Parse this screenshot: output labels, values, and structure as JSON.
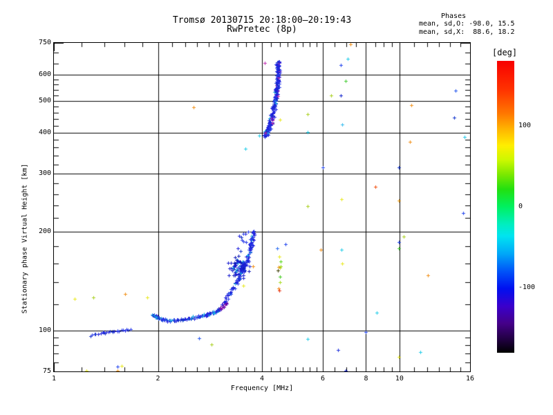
{
  "title": {
    "line1": "Tromsø 20130715 20:18:00–20:19:43",
    "line2": "RwPretec (8p)"
  },
  "stats": {
    "header": "Phases",
    "line_o": "mean, sd,O: -98.0, 15.5",
    "line_x": "mean, sd,X:  88.6, 18.2"
  },
  "chart_data": {
    "type": "scatter",
    "title": "Tromsø 20130715 20:18:00–20:19:43 / RwPretec (8p)",
    "xlabel": "Frequency [MHz]",
    "ylabel": "Stationary phase Virtual Height [km]",
    "x_scale": "log",
    "y_scale": "log",
    "x_range": [
      1,
      16
    ],
    "y_range": [
      75,
      750
    ],
    "x_ticks": [
      1,
      2,
      4,
      6,
      8,
      10,
      16
    ],
    "x_minor_ticks": [
      1.2,
      1.4,
      1.6,
      1.8,
      2.2,
      2.4,
      2.6,
      2.8,
      3,
      3.2,
      3.4,
      3.6,
      3.8,
      4.25,
      4.5,
      4.75,
      5,
      5.25,
      5.5,
      5.75,
      6.5,
      7,
      7.5,
      8.5,
      9,
      9.5,
      11,
      12,
      13,
      14,
      15
    ],
    "y_ticks": [
      75,
      100,
      200,
      300,
      400,
      500,
      600,
      750
    ],
    "y_minor_ticks": [
      80,
      85,
      90,
      95,
      120,
      140,
      160,
      180,
      220,
      240,
      260,
      280,
      320,
      340,
      360,
      380,
      420,
      440,
      460,
      480,
      520,
      540,
      560,
      580,
      650,
      700
    ],
    "x_gridlines": [
      2,
      4,
      6,
      8,
      10
    ],
    "y_gridlines": [
      100,
      200,
      300,
      400,
      500,
      600
    ],
    "grid": true,
    "colorbar": {
      "label": "[deg]",
      "range": [
        -180,
        180
      ],
      "ticks": [
        {
          "value": 100,
          "label": "100"
        },
        {
          "value": 0,
          "label": "0"
        },
        {
          "value": -100,
          "label": "-100"
        }
      ],
      "stops": [
        [
          0.0,
          "#f80000"
        ],
        [
          0.1,
          "#ff3300"
        ],
        [
          0.18,
          "#ff7700"
        ],
        [
          0.24,
          "#ffbb00"
        ],
        [
          0.29,
          "#ffee00"
        ],
        [
          0.34,
          "#ccf800"
        ],
        [
          0.39,
          "#7ae800"
        ],
        [
          0.44,
          "#22e010"
        ],
        [
          0.5,
          "#00f060"
        ],
        [
          0.56,
          "#00eec0"
        ],
        [
          0.6,
          "#00e4f0"
        ],
        [
          0.66,
          "#00a8f8"
        ],
        [
          0.72,
          "#0055f8"
        ],
        [
          0.78,
          "#0010f0"
        ],
        [
          0.84,
          "#3a00cc"
        ],
        [
          0.9,
          "#440088"
        ],
        [
          0.955,
          "#200040"
        ],
        [
          1.0,
          "#000000"
        ]
      ]
    },
    "series": [
      {
        "name": "E-trace-low",
        "kind": "path",
        "seed": 11,
        "count": 26,
        "jitter": [
          2,
          1.8
        ],
        "path": [
          [
            1.27,
            96.5
          ],
          [
            1.4,
            98.5
          ],
          [
            1.53,
            100
          ],
          [
            1.67,
            100.5
          ]
        ],
        "palette": [
          "#1f22dd",
          "#2b3ce8",
          "#1430c8",
          "#1f22dd",
          "#2b3ce8"
        ]
      },
      {
        "name": "E-trace-main",
        "kind": "path",
        "seed": 22,
        "count": 118,
        "jitter": [
          2.5,
          2.2
        ],
        "path": [
          [
            1.93,
            111
          ],
          [
            2.03,
            108.5
          ],
          [
            2.18,
            107
          ],
          [
            2.45,
            108.5
          ],
          [
            2.7,
            111
          ],
          [
            2.9,
            113.5
          ],
          [
            3.02,
            116
          ]
        ],
        "palette": [
          "#1f22dd",
          "#1f22dd",
          "#2b3ce8",
          "#1430c8",
          "#2b6ce8",
          "#18a8e0",
          "#1f22dd",
          "#2b3ce8",
          "#1f22dd",
          "#1f22dd",
          "#18a8e0",
          "#1430c8"
        ]
      },
      {
        "name": "E-trace-end-violet",
        "kind": "path",
        "seed": 33,
        "count": 16,
        "jitter": [
          2,
          2.5
        ],
        "path": [
          [
            3.0,
            115.5
          ],
          [
            3.09,
            119
          ],
          [
            3.17,
            122
          ]
        ],
        "palette": [
          "#5a10b8",
          "#7a10b8",
          "#4520c8",
          "#9510a8",
          "#3020cc",
          "#6a08a8"
        ]
      },
      {
        "name": "E-F-rising",
        "kind": "path",
        "seed": 44,
        "count": 95,
        "jitter": [
          3,
          5.5
        ],
        "path": [
          [
            3.08,
            121
          ],
          [
            3.25,
            131
          ],
          [
            3.4,
            142
          ],
          [
            3.52,
            153
          ],
          [
            3.62,
            166
          ],
          [
            3.7,
            178
          ],
          [
            3.76,
            190
          ],
          [
            3.8,
            200
          ]
        ],
        "palette": [
          "#1f22dd",
          "#1f22dd",
          "#2b3ce8",
          "#1430c8",
          "#1f22dd",
          "#2b3ce8",
          "#1430c8",
          "#1f22dd",
          "#18a8e0",
          "#1f22dd",
          "#2b3ce8",
          "#1f22dd"
        ]
      },
      {
        "name": "mid-cluster",
        "kind": "blob",
        "seed": 55,
        "count": 75,
        "center": [
          3.45,
          155
        ],
        "sigma": [
          11,
          13
        ],
        "palette": [
          "#1a1ed0",
          "#1a1ed0",
          "#2530e0",
          "#101ab8",
          "#1a1ed0",
          "#2530e0",
          "#101ab8",
          "#1a1ed0",
          "#18a0d8",
          "#1a1ed0"
        ]
      },
      {
        "name": "upper-cluster",
        "kind": "blob",
        "seed": 66,
        "count": 14,
        "center": [
          3.62,
          186
        ],
        "sigma": [
          10,
          11
        ],
        "palette": [
          "#1f22dd",
          "#2b3ce8",
          "#1430c8",
          "#1f22dd"
        ]
      },
      {
        "name": "F-trace-vertical",
        "kind": "path",
        "seed": 77,
        "count": 235,
        "jitter": [
          3.2,
          6
        ],
        "path": [
          [
            4.07,
            388
          ],
          [
            4.18,
            412
          ],
          [
            4.3,
            455
          ],
          [
            4.38,
            505
          ],
          [
            4.43,
            555
          ],
          [
            4.455,
            610
          ],
          [
            4.44,
            655
          ]
        ],
        "palette": [
          "#1f22dd",
          "#2b3ce8",
          "#1430c8",
          "#1f22dd",
          "#2b3ce8",
          "#1f22dd",
          "#1430c8",
          "#2b3ce8",
          "#1f22dd",
          "#1f22dd",
          "#2b3ce8",
          "#1f22dd",
          "#1430c8",
          "#1f22dd",
          "#18a8e0",
          "#1f22dd",
          "#2b3ce8",
          "#1f22dd",
          "#1f22dd",
          "#c02fb0"
        ]
      },
      {
        "name": "secondary-column",
        "kind": "points",
        "points": [
          [
            4.43,
            178,
            "#2a6cf0"
          ],
          [
            4.49,
            168,
            "#e8e820"
          ],
          [
            4.53,
            162,
            "#55d818"
          ],
          [
            4.46,
            156,
            "#f09018"
          ],
          [
            4.5,
            155,
            "#c8c818"
          ],
          [
            4.53,
            157,
            "#9ad818"
          ],
          [
            4.51,
            146,
            "#44cc22"
          ],
          [
            4.5,
            140,
            "#aadd22"
          ],
          [
            4.47,
            134,
            "#f08818"
          ],
          [
            4.48,
            132,
            "#e83818"
          ],
          [
            4.44,
            152,
            "#404008"
          ]
        ]
      }
    ],
    "outliers": [
      [
        7.07,
        671,
        "#22cce8"
      ],
      [
        6.76,
        643,
        "#2244ee"
      ],
      [
        6.98,
        574,
        "#44cc33"
      ],
      [
        6.34,
        518,
        "#aad020"
      ],
      [
        6.76,
        518,
        "#1122cc"
      ],
      [
        14.5,
        538,
        "#2255ee"
      ],
      [
        10.8,
        486,
        "#f09018"
      ],
      [
        5.41,
        456,
        "#aad020"
      ],
      [
        14.4,
        445,
        "#1133cc"
      ],
      [
        5.41,
        401,
        "#22cce8"
      ],
      [
        6.82,
        423,
        "#33bbee"
      ],
      [
        15.4,
        388,
        "#22c8e8"
      ],
      [
        10.7,
        375,
        "#f09018"
      ],
      [
        8.5,
        273,
        "#f05010"
      ],
      [
        6.8,
        251,
        "#e8e820"
      ],
      [
        9.95,
        248,
        "#f0a018"
      ],
      [
        9.95,
        313,
        "#1133cc"
      ],
      [
        5.99,
        313,
        "#2244ee"
      ],
      [
        5.41,
        239,
        "#aad020"
      ],
      [
        15.3,
        228,
        "#2244ee"
      ],
      [
        5.92,
        176,
        "#f09018"
      ],
      [
        6.8,
        176,
        "#22cce8"
      ],
      [
        10.3,
        193,
        "#aad020"
      ],
      [
        9.95,
        186,
        "#2244ee"
      ],
      [
        9.95,
        178,
        "#44cc33"
      ],
      [
        6.83,
        160,
        "#e8e820"
      ],
      [
        12.1,
        147,
        "#f09018"
      ],
      [
        8.6,
        113,
        "#22cce8"
      ],
      [
        8.0,
        99,
        "#2244ee"
      ],
      [
        5.41,
        94,
        "#22cce8"
      ],
      [
        6.65,
        87,
        "#2233dd"
      ],
      [
        11.5,
        86,
        "#22cce8"
      ],
      [
        9.95,
        83,
        "#e8e820"
      ],
      [
        6.98,
        75.5,
        "#1122cc"
      ],
      [
        1.3,
        126,
        "#aad020"
      ],
      [
        1.61,
        129,
        "#f09018"
      ],
      [
        1.86,
        126,
        "#e8e820"
      ],
      [
        1.15,
        125,
        "#e8e820"
      ],
      [
        1.53,
        77.6,
        "#2244ee"
      ],
      [
        1.57,
        77.8,
        "#e8e820"
      ],
      [
        1.24,
        75.3,
        "#e8e820"
      ],
      [
        1.53,
        75.3,
        "#f09018"
      ],
      [
        2.63,
        94.5,
        "#2255ee"
      ],
      [
        2.86,
        90.6,
        "#aad020"
      ],
      [
        2.53,
        478,
        "#f09018"
      ],
      [
        3.58,
        357,
        "#22cce8"
      ],
      [
        7.2,
        742,
        "#f09018"
      ],
      [
        4.51,
        437,
        "#e8e820"
      ],
      [
        3.93,
        392,
        "#22cce8"
      ],
      [
        4.07,
        652,
        "#c02fb0"
      ],
      [
        4.1,
        399,
        "#b02fa0"
      ],
      [
        3.77,
        157,
        "#f09018"
      ],
      [
        3.53,
        137,
        "#e8e820"
      ],
      [
        4.68,
        183,
        "#2244ee"
      ]
    ]
  }
}
